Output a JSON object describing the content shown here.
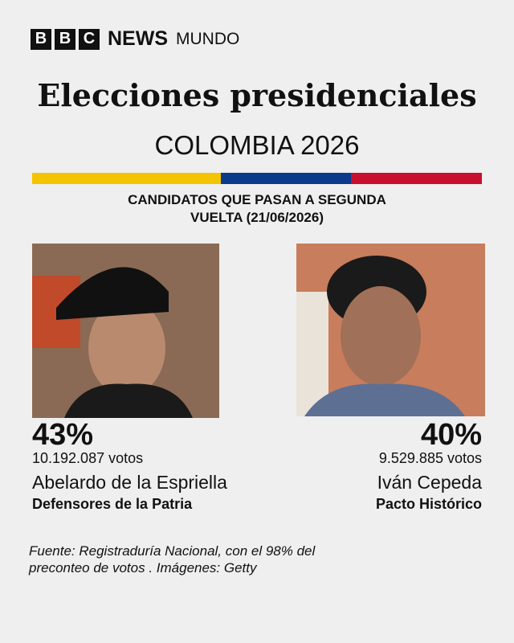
{
  "logo": {
    "letters": [
      "B",
      "B",
      "C"
    ],
    "brand": "NEWS",
    "edition": "MUNDO"
  },
  "header": {
    "title": "Elecciones presidenciales",
    "subtitle": "COLOMBIA 2026"
  },
  "section": {
    "title": "CANDIDATOS QUE PASAN A SEGUNDA VUELTA (21/06/2026)"
  },
  "candidates": [
    {
      "percent": "43%",
      "votes": "10.192.087 votos",
      "name": "Abelardo de la Espriella",
      "party": "Defensores de la Patria"
    },
    {
      "percent": "40%",
      "votes": "9.529.885 votos",
      "name": "Iván Cepeda",
      "party": "Pacto Histórico"
    }
  ],
  "footer": {
    "source": "Fuente: Registraduría Nacional, con el 98% del preconteo de votos . Imágenes: Getty"
  }
}
